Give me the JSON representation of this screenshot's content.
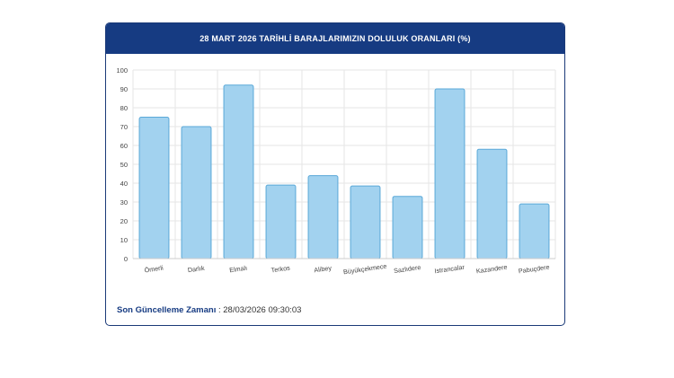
{
  "header": {
    "title": "28 MART 2026 TARİHLİ BARAJLARIMIZIN DOLULUK ORANLARI (%)"
  },
  "footer": {
    "label": "Son Güncelleme Zamanı",
    "separator": " : ",
    "value": "28/03/2026 09:30:03"
  },
  "colors": {
    "header_bg": "#163b82",
    "bar_fill": "#a2d2ef",
    "bar_stroke": "#5aa8d8",
    "grid": "#e6e6e6"
  },
  "chart_data": {
    "type": "bar",
    "title": "28 MART 2026 TARİHLİ BARAJLARIMIZIN DOLULUK ORANLARI (%)",
    "categories": [
      "Ömerli",
      "Darlık",
      "Elmalı",
      "Terkos",
      "Alibey",
      "Büyükçekmece",
      "Sazlıdere",
      "Istrancalar",
      "Kazandere",
      "Pabuçdere"
    ],
    "values": [
      75,
      70,
      92,
      39,
      44,
      38.5,
      33,
      90,
      58,
      29
    ],
    "ylim": [
      0,
      100
    ],
    "yticks": [
      0,
      10,
      20,
      30,
      40,
      50,
      60,
      70,
      80,
      90,
      100
    ],
    "xlabel": "",
    "ylabel": "",
    "grid": true
  }
}
